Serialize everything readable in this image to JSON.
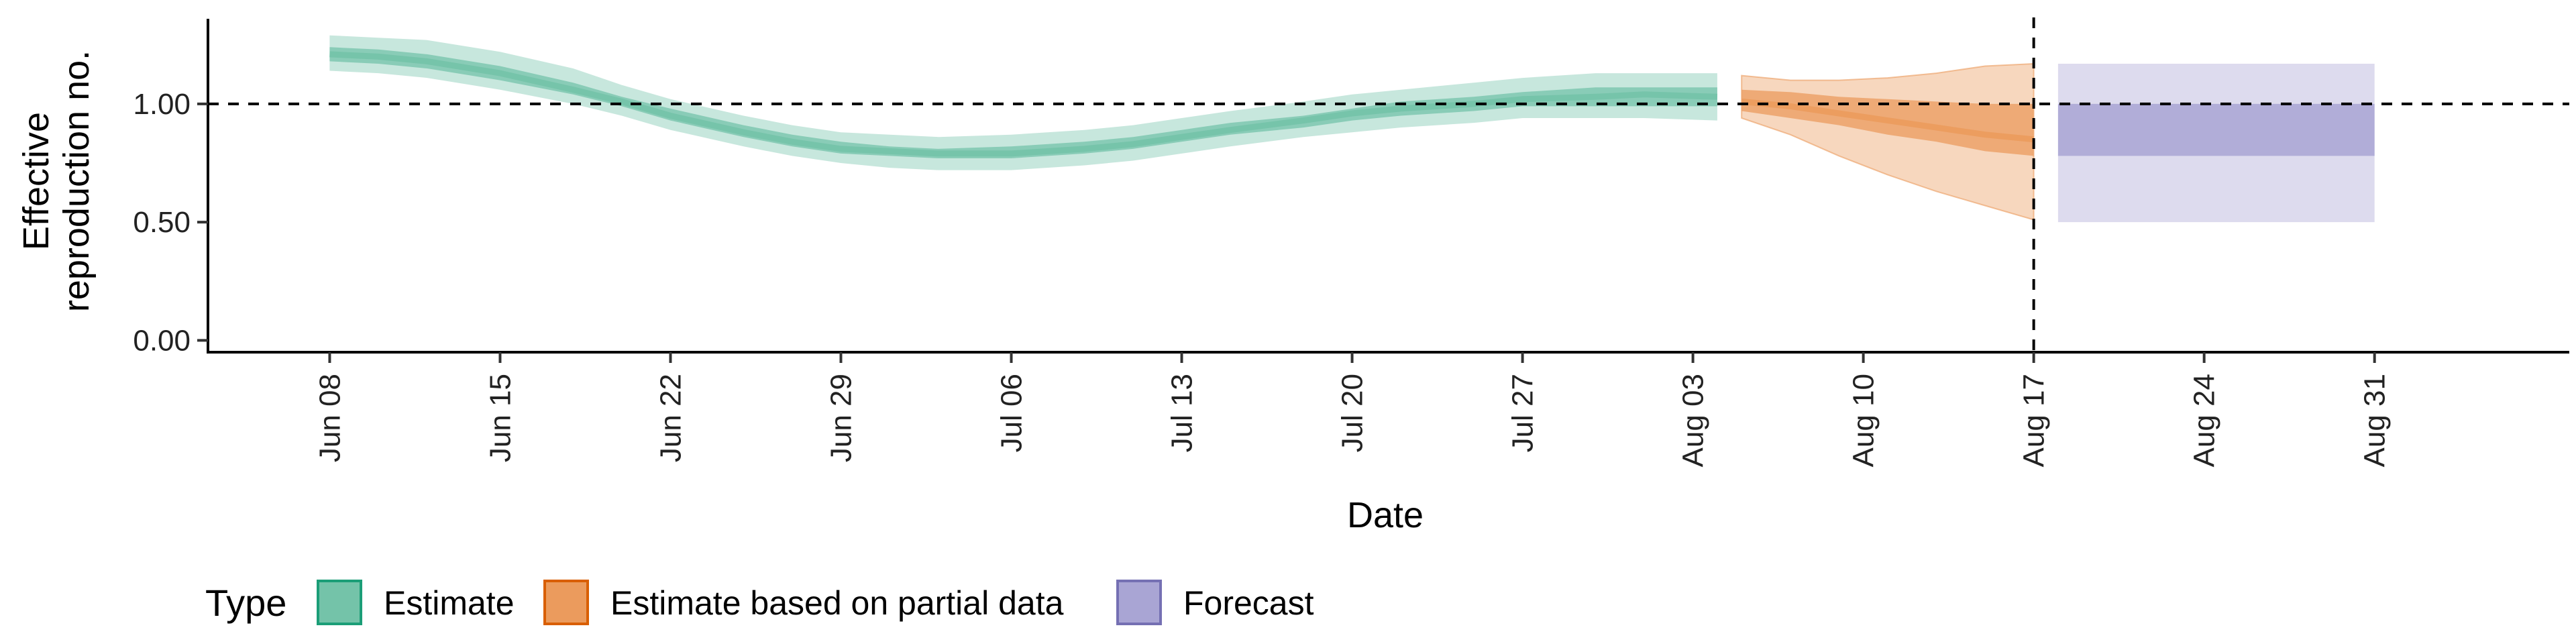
{
  "chart_data": {
    "type": "area",
    "xlabel": "Date",
    "ylabel_lines": [
      "Effective",
      "reproduction no."
    ],
    "x_ticks": [
      "Jun 08",
      "Jun 15",
      "Jun 22",
      "Jun 29",
      "Jul 06",
      "Jul 13",
      "Jul 20",
      "Jul 27",
      "Aug 03",
      "Aug 10",
      "Aug 17",
      "Aug 24",
      "Aug 31"
    ],
    "y_ticks": [
      "0.00",
      "0.50",
      "1.00"
    ],
    "ylim": [
      -0.05,
      1.36
    ],
    "xlim": [
      "2020-06-03",
      "2020-09-08"
    ],
    "hline": 1.0,
    "vline": "2020-08-17",
    "legend": {
      "title": "Type",
      "position": "bottom-left",
      "items": [
        {
          "label": "Estimate",
          "fill": "#74c3a9",
          "stroke": "#1b9e77"
        },
        {
          "label": "Estimate based on partial data",
          "fill": "#eb9b5d",
          "stroke": "#d95f02"
        },
        {
          "label": "Forecast",
          "fill": "#a9a5d4",
          "stroke": "#7570b3"
        }
      ]
    },
    "series": [
      {
        "name": "Estimate",
        "color": "#1b9e77",
        "x": [
          "2020-06-08",
          "2020-06-10",
          "2020-06-12",
          "2020-06-15",
          "2020-06-18",
          "2020-06-20",
          "2020-06-22",
          "2020-06-25",
          "2020-06-27",
          "2020-06-29",
          "2020-07-01",
          "2020-07-03",
          "2020-07-06",
          "2020-07-09",
          "2020-07-11",
          "2020-07-13",
          "2020-07-15",
          "2020-07-18",
          "2020-07-20",
          "2020-07-22",
          "2020-07-25",
          "2020-07-27",
          "2020-07-30",
          "2020-08-01",
          "2020-08-04"
        ],
        "median": [
          1.21,
          1.2,
          1.18,
          1.13,
          1.06,
          1.01,
          0.95,
          0.88,
          0.84,
          0.81,
          0.8,
          0.79,
          0.79,
          0.81,
          0.83,
          0.86,
          0.89,
          0.93,
          0.96,
          0.98,
          1.0,
          1.02,
          1.03,
          1.04,
          1.03
        ],
        "inner": [
          [
            1.18,
            1.24
          ],
          [
            1.17,
            1.23
          ],
          [
            1.15,
            1.21
          ],
          [
            1.1,
            1.16
          ],
          [
            1.04,
            1.09
          ],
          [
            0.99,
            1.03
          ],
          [
            0.93,
            0.98
          ],
          [
            0.86,
            0.91
          ],
          [
            0.82,
            0.87
          ],
          [
            0.79,
            0.84
          ],
          [
            0.78,
            0.82
          ],
          [
            0.77,
            0.81
          ],
          [
            0.77,
            0.82
          ],
          [
            0.79,
            0.84
          ],
          [
            0.81,
            0.86
          ],
          [
            0.84,
            0.89
          ],
          [
            0.87,
            0.92
          ],
          [
            0.9,
            0.95
          ],
          [
            0.93,
            0.98
          ],
          [
            0.95,
            1.01
          ],
          [
            0.97,
            1.03
          ],
          [
            0.99,
            1.05
          ],
          [
            0.99,
            1.07
          ],
          [
            0.99,
            1.07
          ],
          [
            0.99,
            1.07
          ]
        ],
        "outer": [
          [
            1.14,
            1.29
          ],
          [
            1.13,
            1.28
          ],
          [
            1.11,
            1.27
          ],
          [
            1.06,
            1.22
          ],
          [
            1.0,
            1.15
          ],
          [
            0.95,
            1.08
          ],
          [
            0.89,
            1.02
          ],
          [
            0.82,
            0.95
          ],
          [
            0.78,
            0.91
          ],
          [
            0.75,
            0.88
          ],
          [
            0.73,
            0.87
          ],
          [
            0.72,
            0.86
          ],
          [
            0.72,
            0.87
          ],
          [
            0.74,
            0.89
          ],
          [
            0.76,
            0.91
          ],
          [
            0.79,
            0.94
          ],
          [
            0.82,
            0.97
          ],
          [
            0.86,
            1.01
          ],
          [
            0.88,
            1.04
          ],
          [
            0.9,
            1.06
          ],
          [
            0.92,
            1.09
          ],
          [
            0.94,
            1.11
          ],
          [
            0.94,
            1.13
          ],
          [
            0.94,
            1.13
          ],
          [
            0.93,
            1.13
          ]
        ]
      },
      {
        "name": "Estimate based on partial data",
        "color": "#d95f02",
        "x": [
          "2020-08-05",
          "2020-08-07",
          "2020-08-09",
          "2020-08-11",
          "2020-08-13",
          "2020-08-15",
          "2020-08-17"
        ],
        "median": [
          1.01,
          0.99,
          0.96,
          0.93,
          0.9,
          0.87,
          0.85
        ],
        "inner": [
          [
            0.97,
            1.06
          ],
          [
            0.94,
            1.05
          ],
          [
            0.91,
            1.03
          ],
          [
            0.87,
            1.02
          ],
          [
            0.84,
            1.01
          ],
          [
            0.8,
            1.0
          ],
          [
            0.78,
            1.0
          ]
        ],
        "outer": [
          [
            0.94,
            1.12
          ],
          [
            0.87,
            1.1
          ],
          [
            0.78,
            1.1
          ],
          [
            0.7,
            1.11
          ],
          [
            0.63,
            1.13
          ],
          [
            0.57,
            1.16
          ],
          [
            0.51,
            1.17
          ]
        ]
      },
      {
        "name": "Forecast",
        "color": "#7570b3",
        "x": [
          "2020-08-18",
          "2020-08-31"
        ],
        "inner": [
          [
            0.78,
            1.0
          ],
          [
            0.78,
            1.0
          ]
        ],
        "outer": [
          [
            0.5,
            1.17
          ],
          [
            0.5,
            1.17
          ]
        ]
      }
    ]
  }
}
